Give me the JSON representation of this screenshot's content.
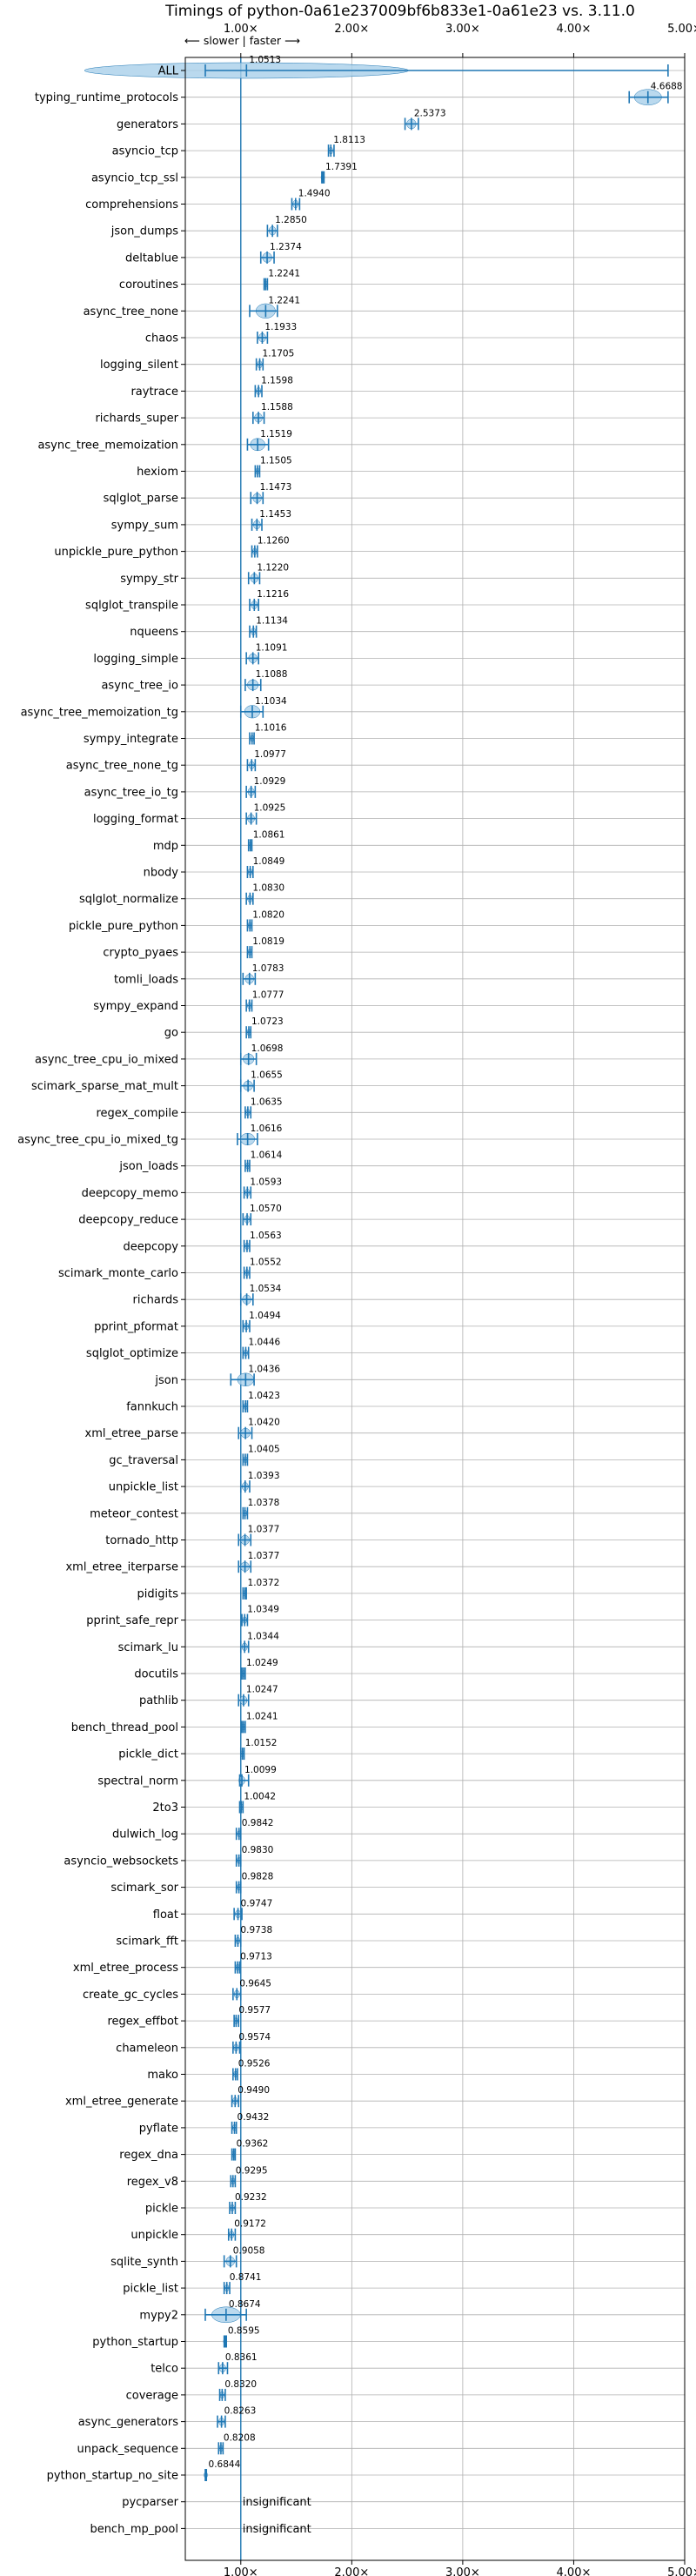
{
  "chart_data": {
    "type": "violin",
    "title": "Timings of python-0a61e237009bf6b833e1-0a61e23 vs. 3.11.0",
    "direction_note": "⟵ slower | faster ⟶",
    "xlabel": "",
    "ylabel": "",
    "xlim": [
      0.5,
      5.0
    ],
    "x_ticks": [
      {
        "value": 1.0,
        "label": "1.00×"
      },
      {
        "value": 2.0,
        "label": "2.00×"
      },
      {
        "value": 3.0,
        "label": "3.00×"
      },
      {
        "value": 4.0,
        "label": "4.00×"
      },
      {
        "value": 5.0,
        "label": "5.00×"
      }
    ],
    "grid": true,
    "reference_line": 1.0,
    "benchmarks": [
      {
        "name": "ALL",
        "value": 1.0513,
        "label": "1.0513",
        "low": 0.68,
        "high": 4.85
      },
      {
        "name": "typing_runtime_protocols",
        "value": 4.6688,
        "label": "4.6688",
        "low": 4.5,
        "high": 4.85
      },
      {
        "name": "generators",
        "value": 2.5373,
        "label": "2.5373",
        "low": 2.48,
        "high": 2.6
      },
      {
        "name": "asyncio_tcp",
        "value": 1.8113,
        "label": "1.8113",
        "low": 1.79,
        "high": 1.84
      },
      {
        "name": "asyncio_tcp_ssl",
        "value": 1.7391,
        "label": "1.7391",
        "low": 1.73,
        "high": 1.75
      },
      {
        "name": "comprehensions",
        "value": 1.494,
        "label": "1.4940",
        "low": 1.46,
        "high": 1.53
      },
      {
        "name": "json_dumps",
        "value": 1.285,
        "label": "1.2850",
        "low": 1.24,
        "high": 1.33
      },
      {
        "name": "deltablue",
        "value": 1.2374,
        "label": "1.2374",
        "low": 1.18,
        "high": 1.3
      },
      {
        "name": "coroutines",
        "value": 1.2241,
        "label": "1.2241",
        "low": 1.21,
        "high": 1.24
      },
      {
        "name": "async_tree_none",
        "value": 1.2241,
        "label": "1.2241",
        "low": 1.08,
        "high": 1.33
      },
      {
        "name": "chaos",
        "value": 1.1933,
        "label": "1.1933",
        "low": 1.15,
        "high": 1.24
      },
      {
        "name": "logging_silent",
        "value": 1.1705,
        "label": "1.1705",
        "low": 1.14,
        "high": 1.2
      },
      {
        "name": "raytrace",
        "value": 1.1598,
        "label": "1.1598",
        "low": 1.13,
        "high": 1.19
      },
      {
        "name": "richards_super",
        "value": 1.1588,
        "label": "1.1588",
        "low": 1.11,
        "high": 1.21
      },
      {
        "name": "async_tree_memoization",
        "value": 1.1519,
        "label": "1.1519",
        "low": 1.06,
        "high": 1.25
      },
      {
        "name": "hexiom",
        "value": 1.1505,
        "label": "1.1505",
        "low": 1.13,
        "high": 1.17
      },
      {
        "name": "sqlglot_parse",
        "value": 1.1473,
        "label": "1.1473",
        "low": 1.09,
        "high": 1.2
      },
      {
        "name": "sympy_sum",
        "value": 1.1453,
        "label": "1.1453",
        "low": 1.1,
        "high": 1.19
      },
      {
        "name": "unpickle_pure_python",
        "value": 1.126,
        "label": "1.1260",
        "low": 1.1,
        "high": 1.15
      },
      {
        "name": "sympy_str",
        "value": 1.122,
        "label": "1.1220",
        "low": 1.07,
        "high": 1.17
      },
      {
        "name": "sqlglot_transpile",
        "value": 1.1216,
        "label": "1.1216",
        "low": 1.08,
        "high": 1.16
      },
      {
        "name": "nqueens",
        "value": 1.1134,
        "label": "1.1134",
        "low": 1.08,
        "high": 1.14
      },
      {
        "name": "logging_simple",
        "value": 1.1091,
        "label": "1.1091",
        "low": 1.05,
        "high": 1.16
      },
      {
        "name": "async_tree_io",
        "value": 1.1088,
        "label": "1.1088",
        "low": 1.04,
        "high": 1.18
      },
      {
        "name": "async_tree_memoization_tg",
        "value": 1.1034,
        "label": "1.1034",
        "low": 1.0,
        "high": 1.2
      },
      {
        "name": "sympy_integrate",
        "value": 1.1016,
        "label": "1.1016",
        "low": 1.08,
        "high": 1.12
      },
      {
        "name": "async_tree_none_tg",
        "value": 1.0977,
        "label": "1.0977",
        "low": 1.06,
        "high": 1.13
      },
      {
        "name": "async_tree_io_tg",
        "value": 1.0929,
        "label": "1.0929",
        "low": 1.05,
        "high": 1.13
      },
      {
        "name": "logging_format",
        "value": 1.0925,
        "label": "1.0925",
        "low": 1.05,
        "high": 1.14
      },
      {
        "name": "mdp",
        "value": 1.0861,
        "label": "1.0861",
        "low": 1.07,
        "high": 1.1
      },
      {
        "name": "nbody",
        "value": 1.0849,
        "label": "1.0849",
        "low": 1.06,
        "high": 1.11
      },
      {
        "name": "sqlglot_normalize",
        "value": 1.083,
        "label": "1.0830",
        "low": 1.05,
        "high": 1.11
      },
      {
        "name": "pickle_pure_python",
        "value": 1.082,
        "label": "1.0820",
        "low": 1.06,
        "high": 1.1
      },
      {
        "name": "crypto_pyaes",
        "value": 1.0819,
        "label": "1.0819",
        "low": 1.06,
        "high": 1.1
      },
      {
        "name": "tomli_loads",
        "value": 1.0783,
        "label": "1.0783",
        "low": 1.02,
        "high": 1.13
      },
      {
        "name": "sympy_expand",
        "value": 1.0777,
        "label": "1.0777",
        "low": 1.05,
        "high": 1.1
      },
      {
        "name": "go",
        "value": 1.0723,
        "label": "1.0723",
        "low": 1.05,
        "high": 1.09
      },
      {
        "name": "async_tree_cpu_io_mixed",
        "value": 1.0698,
        "label": "1.0698",
        "low": 1.0,
        "high": 1.14
      },
      {
        "name": "scimark_sparse_mat_mult",
        "value": 1.0655,
        "label": "1.0655",
        "low": 1.0,
        "high": 1.12
      },
      {
        "name": "regex_compile",
        "value": 1.0635,
        "label": "1.0635",
        "low": 1.04,
        "high": 1.09
      },
      {
        "name": "async_tree_cpu_io_mixed_tg",
        "value": 1.0616,
        "label": "1.0616",
        "low": 0.97,
        "high": 1.15
      },
      {
        "name": "json_loads",
        "value": 1.0614,
        "label": "1.0614",
        "low": 1.04,
        "high": 1.08
      },
      {
        "name": "deepcopy_memo",
        "value": 1.0593,
        "label": "1.0593",
        "low": 1.03,
        "high": 1.09
      },
      {
        "name": "deepcopy_reduce",
        "value": 1.057,
        "label": "1.0570",
        "low": 1.02,
        "high": 1.09
      },
      {
        "name": "deepcopy",
        "value": 1.0563,
        "label": "1.0563",
        "low": 1.03,
        "high": 1.08
      },
      {
        "name": "scimark_monte_carlo",
        "value": 1.0552,
        "label": "1.0552",
        "low": 1.03,
        "high": 1.08
      },
      {
        "name": "richards",
        "value": 1.0534,
        "label": "1.0534",
        "low": 1.0,
        "high": 1.11
      },
      {
        "name": "pprint_pformat",
        "value": 1.0494,
        "label": "1.0494",
        "low": 1.02,
        "high": 1.08
      },
      {
        "name": "sqlglot_optimize",
        "value": 1.0446,
        "label": "1.0446",
        "low": 1.02,
        "high": 1.07
      },
      {
        "name": "json",
        "value": 1.0436,
        "label": "1.0436",
        "low": 0.91,
        "high": 1.12
      },
      {
        "name": "fannkuch",
        "value": 1.0423,
        "label": "1.0423",
        "low": 1.02,
        "high": 1.06
      },
      {
        "name": "xml_etree_parse",
        "value": 1.042,
        "label": "1.0420",
        "low": 0.98,
        "high": 1.1
      },
      {
        "name": "gc_traversal",
        "value": 1.0405,
        "label": "1.0405",
        "low": 1.02,
        "high": 1.06
      },
      {
        "name": "unpickle_list",
        "value": 1.0393,
        "label": "1.0393",
        "low": 1.0,
        "high": 1.08
      },
      {
        "name": "meteor_contest",
        "value": 1.0378,
        "label": "1.0378",
        "low": 1.02,
        "high": 1.06
      },
      {
        "name": "tornado_http",
        "value": 1.0377,
        "label": "1.0377",
        "low": 0.98,
        "high": 1.09
      },
      {
        "name": "xml_etree_iterparse",
        "value": 1.0377,
        "label": "1.0377",
        "low": 0.98,
        "high": 1.09
      },
      {
        "name": "pidigits",
        "value": 1.0372,
        "label": "1.0372",
        "low": 1.02,
        "high": 1.05
      },
      {
        "name": "pprint_safe_repr",
        "value": 1.0349,
        "label": "1.0349",
        "low": 1.01,
        "high": 1.06
      },
      {
        "name": "scimark_lu",
        "value": 1.0344,
        "label": "1.0344",
        "low": 1.0,
        "high": 1.07
      },
      {
        "name": "docutils",
        "value": 1.0249,
        "label": "1.0249",
        "low": 1.01,
        "high": 1.04
      },
      {
        "name": "pathlib",
        "value": 1.0247,
        "label": "1.0247",
        "low": 0.98,
        "high": 1.07
      },
      {
        "name": "bench_thread_pool",
        "value": 1.0241,
        "label": "1.0241",
        "low": 1.01,
        "high": 1.04
      },
      {
        "name": "pickle_dict",
        "value": 1.0152,
        "label": "1.0152",
        "low": 1.0,
        "high": 1.03
      },
      {
        "name": "spectral_norm",
        "value": 1.0099,
        "label": "1.0099",
        "low": 0.99,
        "high": 1.07
      },
      {
        "name": "2to3",
        "value": 1.0042,
        "label": "1.0042",
        "low": 0.99,
        "high": 1.02
      },
      {
        "name": "dulwich_log",
        "value": 0.9842,
        "label": "0.9842",
        "low": 0.96,
        "high": 1.0
      },
      {
        "name": "asyncio_websockets",
        "value": 0.983,
        "label": "0.9830",
        "low": 0.96,
        "high": 1.0
      },
      {
        "name": "scimark_sor",
        "value": 0.9828,
        "label": "0.9828",
        "low": 0.96,
        "high": 1.0
      },
      {
        "name": "float",
        "value": 0.9747,
        "label": "0.9747",
        "low": 0.94,
        "high": 1.01
      },
      {
        "name": "scimark_fft",
        "value": 0.9738,
        "label": "0.9738",
        "low": 0.95,
        "high": 1.0
      },
      {
        "name": "xml_etree_process",
        "value": 0.9713,
        "label": "0.9713",
        "low": 0.95,
        "high": 0.99
      },
      {
        "name": "create_gc_cycles",
        "value": 0.9645,
        "label": "0.9645",
        "low": 0.93,
        "high": 1.0
      },
      {
        "name": "regex_effbot",
        "value": 0.9577,
        "label": "0.9577",
        "low": 0.94,
        "high": 0.98
      },
      {
        "name": "chameleon",
        "value": 0.9574,
        "label": "0.9574",
        "low": 0.93,
        "high": 0.99
      },
      {
        "name": "mako",
        "value": 0.9526,
        "label": "0.9526",
        "low": 0.93,
        "high": 0.97
      },
      {
        "name": "xml_etree_generate",
        "value": 0.949,
        "label": "0.9490",
        "low": 0.92,
        "high": 0.98
      },
      {
        "name": "pyflate",
        "value": 0.9432,
        "label": "0.9432",
        "low": 0.92,
        "high": 0.96
      },
      {
        "name": "regex_dna",
        "value": 0.9362,
        "label": "0.9362",
        "low": 0.92,
        "high": 0.95
      },
      {
        "name": "regex_v8",
        "value": 0.9295,
        "label": "0.9295",
        "low": 0.91,
        "high": 0.95
      },
      {
        "name": "pickle",
        "value": 0.9232,
        "label": "0.9232",
        "low": 0.9,
        "high": 0.95
      },
      {
        "name": "unpickle",
        "value": 0.9172,
        "label": "0.9172",
        "low": 0.89,
        "high": 0.95
      },
      {
        "name": "sqlite_synth",
        "value": 0.9058,
        "label": "0.9058",
        "low": 0.85,
        "high": 0.96
      },
      {
        "name": "pickle_list",
        "value": 0.8741,
        "label": "0.8741",
        "low": 0.85,
        "high": 0.9
      },
      {
        "name": "mypy2",
        "value": 0.8674,
        "label": "0.8674",
        "low": 0.68,
        "high": 1.05
      },
      {
        "name": "python_startup",
        "value": 0.8595,
        "label": "0.8595",
        "low": 0.85,
        "high": 0.87
      },
      {
        "name": "telco",
        "value": 0.8361,
        "label": "0.8361",
        "low": 0.8,
        "high": 0.88
      },
      {
        "name": "coverage",
        "value": 0.832,
        "label": "0.8320",
        "low": 0.81,
        "high": 0.86
      },
      {
        "name": "async_generators",
        "value": 0.8263,
        "label": "0.8263",
        "low": 0.79,
        "high": 0.86
      },
      {
        "name": "unpack_sequence",
        "value": 0.8208,
        "label": "0.8208",
        "low": 0.8,
        "high": 0.84
      },
      {
        "name": "python_startup_no_site",
        "value": 0.6844,
        "label": "0.6844",
        "low": 0.68,
        "high": 0.69
      },
      {
        "name": "pycparser",
        "value": null,
        "label": "insignificant"
      },
      {
        "name": "bench_mp_pool",
        "value": null,
        "label": "insignificant"
      }
    ]
  },
  "colors": {
    "violin_fill": "#a9cfea",
    "line": "#1f77b4",
    "grid": "#b0b0b0",
    "axis": "#000000"
  }
}
